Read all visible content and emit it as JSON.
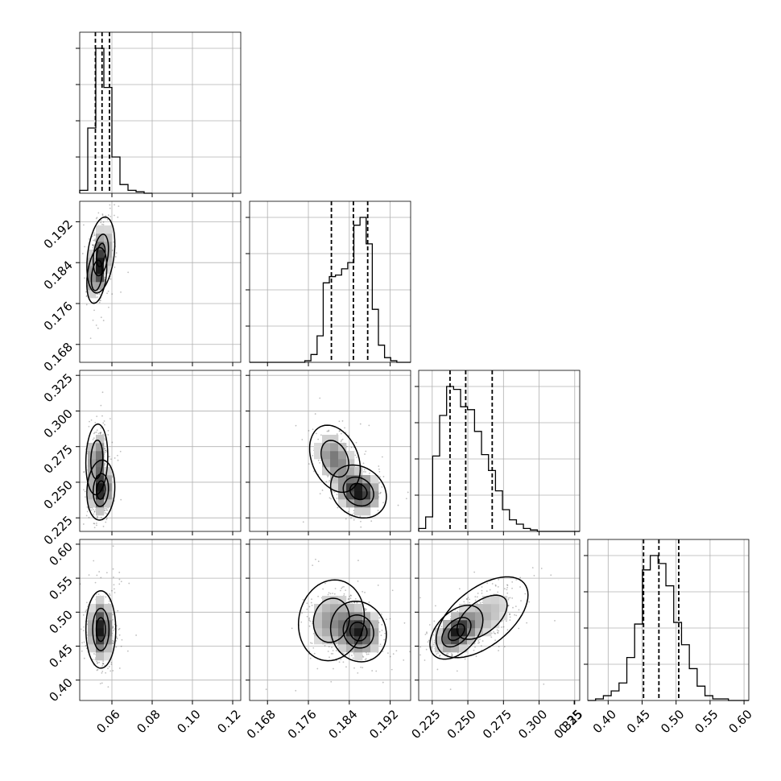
{
  "chart_data": {
    "type": "corner",
    "parameters": [
      {
        "range": [
          0.044,
          0.124
        ],
        "x_ticks": [
          "0.06",
          "0.08",
          "0.10",
          "0.12"
        ],
        "y_ticks": [],
        "quantiles": [
          0.0518,
          0.0551,
          0.0588
        ],
        "hist_bins": [
          0.044,
          0.048,
          0.052,
          0.056,
          0.06,
          0.064,
          0.068,
          0.072,
          0.076,
          0.08
        ],
        "hist_counts": [
          2,
          45,
          100,
          73,
          25,
          6,
          2,
          1,
          0,
          0
        ]
      },
      {
        "range": [
          0.1645,
          0.196
        ],
        "x_ticks": [
          "0.168",
          "0.176",
          "0.184",
          "0.192"
        ],
        "y_ticks": [
          "0.168",
          "0.176",
          "0.184",
          "0.192"
        ],
        "quantiles": [
          0.1805,
          0.1848,
          0.1876
        ],
        "hist_bins": [
          0.1645,
          0.1657,
          0.1669,
          0.1681,
          0.1693,
          0.1705,
          0.1717,
          0.1729,
          0.1741,
          0.1753,
          0.1765,
          0.1777,
          0.1789,
          0.1801,
          0.1813,
          0.1825,
          0.1837,
          0.1849,
          0.1861,
          0.1873,
          0.1885,
          0.1897,
          0.1909,
          0.1921,
          0.1933,
          0.1945,
          0.196
        ],
        "hist_counts": [
          0,
          0,
          0,
          0,
          0,
          0,
          0,
          0,
          0,
          1,
          5,
          17,
          51,
          55,
          56,
          60,
          64,
          88,
          93,
          76,
          34,
          11,
          3,
          1,
          0,
          0
        ]
      },
      {
        "range": [
          0.2155,
          0.3285
        ],
        "x_ticks": [
          "0.225",
          "0.250",
          "0.275",
          "0.300",
          "0.325"
        ],
        "y_ticks": [
          "0.225",
          "0.250",
          "0.275",
          "0.300",
          "0.325"
        ],
        "quantiles": [
          0.2375,
          0.2485,
          0.2671
        ],
        "hist_bins": [
          0.2155,
          0.2204,
          0.2253,
          0.2302,
          0.2351,
          0.24,
          0.2449,
          0.2498,
          0.2547,
          0.2596,
          0.2645,
          0.2694,
          0.2743,
          0.2792,
          0.2841,
          0.289,
          0.2939,
          0.2988,
          0.3037,
          0.3086,
          0.3285
        ],
        "hist_counts": [
          2,
          10,
          52,
          80,
          100,
          98,
          86,
          84,
          69,
          53,
          42,
          28,
          15,
          8,
          5,
          2,
          1,
          0,
          0,
          0
        ]
      },
      {
        "range": [
          0.37,
          0.607
        ],
        "x_ticks": [
          "0.35",
          "0.40",
          "0.45",
          "0.50",
          "0.55",
          "0.60"
        ],
        "y_ticks": [
          "0.40",
          "0.45",
          "0.50",
          "0.55",
          "0.60"
        ],
        "quantiles": [
          0.4521,
          0.4747,
          0.5039
        ],
        "hist_bins": [
          0.37,
          0.3815,
          0.393,
          0.4045,
          0.416,
          0.4275,
          0.439,
          0.4505,
          0.462,
          0.4735,
          0.485,
          0.4965,
          0.508,
          0.5195,
          0.531,
          0.5425,
          0.554,
          0.5655,
          0.577,
          0.5885,
          0.607
        ],
        "hist_counts": [
          0,
          1,
          3,
          6,
          11,
          27,
          48,
          82,
          91,
          86,
          72,
          49,
          35,
          20,
          9,
          3,
          1,
          1,
          0,
          0
        ]
      }
    ],
    "pairs": [
      {
        "x_param": 0,
        "y_param": 1,
        "modes": [
          {
            "x": 0.0545,
            "y": 0.1855,
            "sx": 0.0028,
            "sy": 0.003,
            "rho": 0.3,
            "w": 0.65
          },
          {
            "x": 0.0525,
            "y": 0.1815,
            "sx": 0.002,
            "sy": 0.0022,
            "rho": 0.3,
            "w": 0.35
          }
        ]
      },
      {
        "x_param": 0,
        "y_param": 2,
        "modes": [
          {
            "x": 0.0545,
            "y": 0.2445,
            "sx": 0.0028,
            "sy": 0.0085,
            "rho": 0.1,
            "w": 0.6
          },
          {
            "x": 0.0525,
            "y": 0.266,
            "sx": 0.0022,
            "sy": 0.01,
            "rho": 0.1,
            "w": 0.4
          }
        ]
      },
      {
        "x_param": 1,
        "y_param": 2,
        "modes": [
          {
            "x": 0.1858,
            "y": 0.2435,
            "sx": 0.0022,
            "sy": 0.0075,
            "rho": -0.2,
            "w": 0.62
          },
          {
            "x": 0.1812,
            "y": 0.2665,
            "sx": 0.002,
            "sy": 0.0095,
            "rho": -0.3,
            "w": 0.38
          }
        ]
      },
      {
        "x_param": 0,
        "y_param": 3,
        "modes": [
          {
            "x": 0.0545,
            "y": 0.4745,
            "sx": 0.003,
            "sy": 0.023,
            "rho": 0.0,
            "w": 1.0
          }
        ]
      },
      {
        "x_param": 1,
        "y_param": 3,
        "modes": [
          {
            "x": 0.1858,
            "y": 0.4715,
            "sx": 0.0022,
            "sy": 0.018,
            "rho": -0.1,
            "w": 0.6
          },
          {
            "x": 0.1805,
            "y": 0.488,
            "sx": 0.0026,
            "sy": 0.024,
            "rho": 0.1,
            "w": 0.4
          }
        ]
      },
      {
        "x_param": 2,
        "y_param": 3,
        "modes": [
          {
            "x": 0.242,
            "y": 0.4705,
            "sx": 0.0075,
            "sy": 0.016,
            "rho": 0.45,
            "w": 0.55
          },
          {
            "x": 0.26,
            "y": 0.4925,
            "sx": 0.013,
            "sy": 0.024,
            "rho": 0.55,
            "w": 0.45
          }
        ]
      }
    ],
    "grid": true,
    "legend": "none"
  }
}
